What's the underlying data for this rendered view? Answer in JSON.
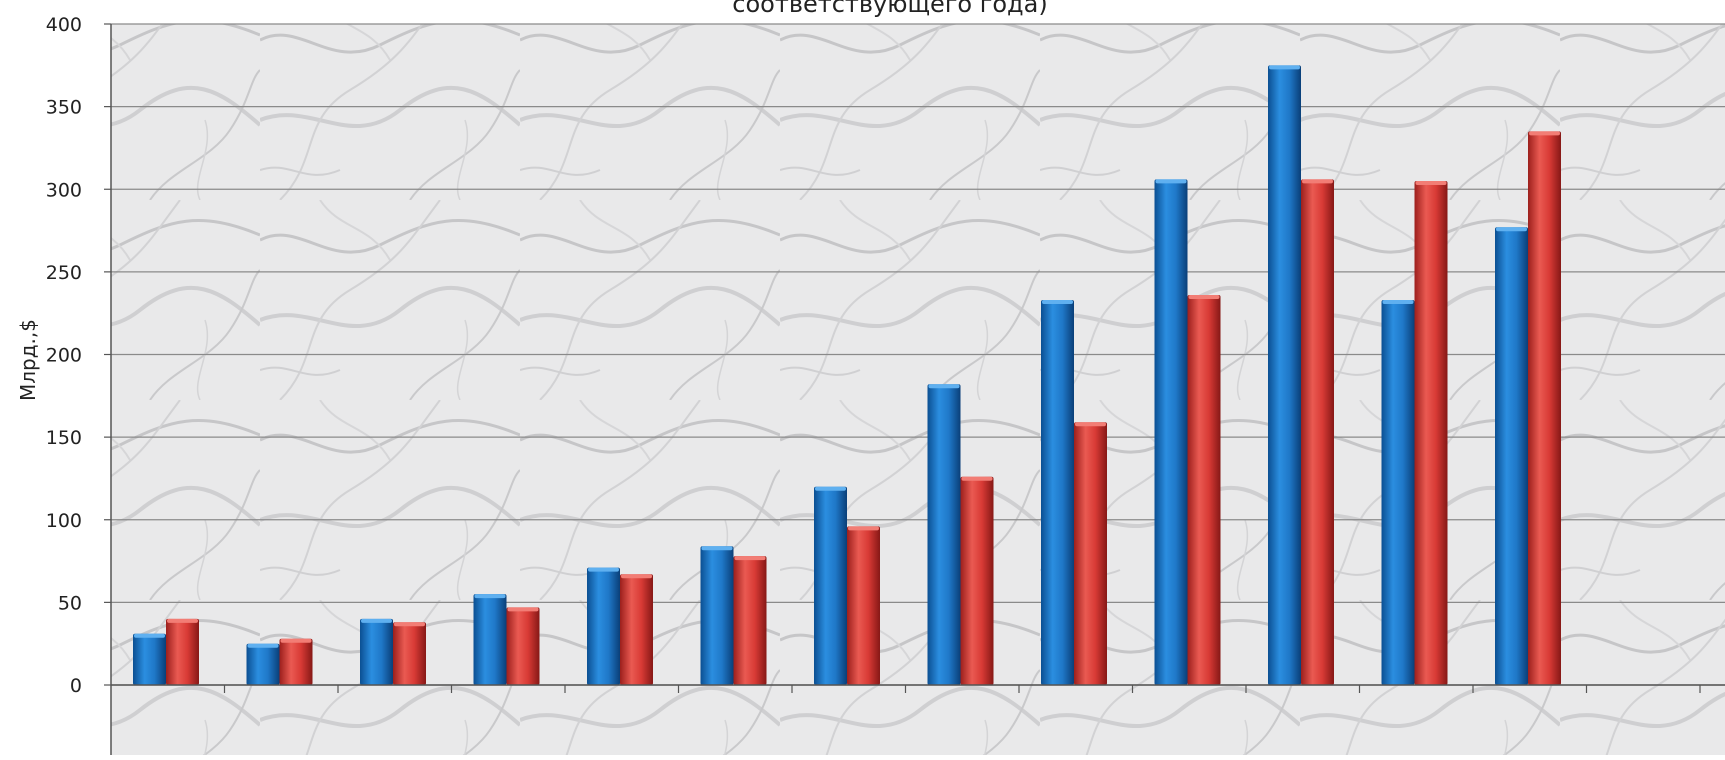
{
  "chart_data": {
    "type": "bar",
    "title": "соответствующего года)",
    "xlabel": "",
    "ylabel": "Млрд.,$",
    "ylim": [
      0,
      400
    ],
    "yticks": [
      0,
      50,
      100,
      150,
      200,
      250,
      300,
      350,
      400
    ],
    "grid": true,
    "legend": "none",
    "categories": [
      "",
      "",
      "",
      "",
      "",
      "",
      "",
      "",
      "",
      "",
      "",
      "",
      "",
      ""
    ],
    "series": [
      {
        "color": "#1f78c8",
        "values": [
          31,
          25,
          40,
          55,
          71,
          84,
          120,
          182,
          233,
          306,
          375,
          233,
          277,
          0
        ]
      },
      {
        "color": "#d83a35",
        "values": [
          40,
          28,
          38,
          47,
          67,
          78,
          96,
          126,
          159,
          236,
          306,
          305,
          335,
          0
        ]
      }
    ]
  }
}
